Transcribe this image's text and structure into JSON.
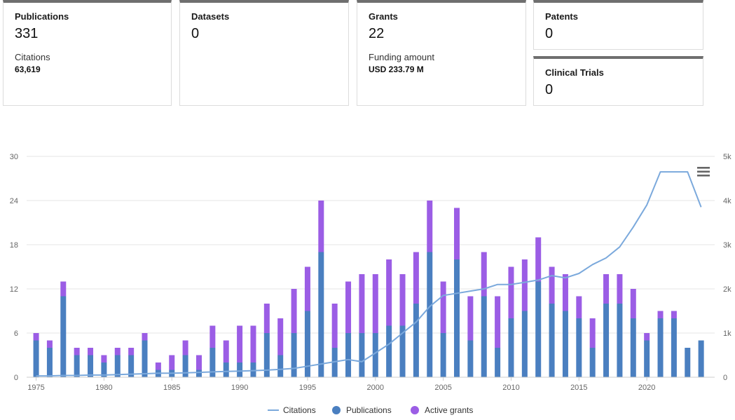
{
  "cards": {
    "publications": {
      "label": "Publications",
      "value": "331",
      "sub_label": "Citations",
      "sub_value": "63,619"
    },
    "datasets": {
      "label": "Datasets",
      "value": "0"
    },
    "grants": {
      "label": "Grants",
      "value": "22",
      "sub_label": "Funding amount",
      "sub_value": "USD 233.79 M"
    },
    "patents": {
      "label": "Patents",
      "value": "0"
    },
    "clinical_trials": {
      "label": "Clinical Trials",
      "value": "0"
    }
  },
  "menu_icon": "hamburger-menu-icon",
  "colors": {
    "publications": "#4a7fc0",
    "grants": "#9b5de5",
    "citations": "#7ba9dc",
    "grid": "#e6e6e6"
  },
  "chart_data": {
    "type": "bar",
    "stacked": true,
    "x": [
      1975,
      1976,
      1977,
      1978,
      1979,
      1980,
      1981,
      1982,
      1983,
      1984,
      1985,
      1986,
      1987,
      1988,
      1989,
      1990,
      1991,
      1992,
      1993,
      1994,
      1995,
      1996,
      1997,
      1998,
      1999,
      2000,
      2001,
      2002,
      2003,
      2004,
      2005,
      2006,
      2007,
      2008,
      2009,
      2010,
      2011,
      2012,
      2013,
      2014,
      2015,
      2016,
      2017,
      2018,
      2019,
      2020,
      2021,
      2022,
      2023,
      2024
    ],
    "xticks": [
      "1975",
      "1980",
      "1985",
      "1990",
      "1995",
      "2000",
      "2005",
      "2010",
      "2015",
      "2020"
    ],
    "xlim": [
      1974.3,
      2025
    ],
    "y_left": {
      "ticks": [
        "0",
        "6",
        "12",
        "18",
        "24",
        "30"
      ],
      "lim": [
        0,
        30
      ]
    },
    "y_right": {
      "ticks": [
        "0",
        "1k",
        "2k",
        "3k",
        "4k",
        "5k"
      ],
      "lim": [
        0,
        5000
      ]
    },
    "grid": true,
    "legend_position": "bottom-center",
    "series": [
      {
        "name": "Publications",
        "kind": "bar",
        "axis": "left",
        "values": [
          5,
          4,
          11,
          3,
          3,
          2,
          3,
          3,
          5,
          1,
          1,
          3,
          1,
          4,
          2,
          2,
          2,
          6,
          3,
          6,
          9,
          17,
          4,
          6,
          6,
          6,
          7,
          7,
          10,
          17,
          6,
          16,
          5,
          11,
          4,
          8,
          9,
          13,
          10,
          9,
          8,
          4,
          10,
          10,
          8,
          5,
          8,
          8,
          4,
          5
        ]
      },
      {
        "name": "Active grants",
        "kind": "bar",
        "axis": "left",
        "values": [
          1,
          1,
          2,
          1,
          1,
          1,
          1,
          1,
          1,
          1,
          2,
          2,
          2,
          3,
          3,
          5,
          5,
          4,
          5,
          6,
          6,
          7,
          6,
          7,
          8,
          8,
          9,
          7,
          7,
          7,
          7,
          7,
          6,
          6,
          7,
          7,
          7,
          6,
          5,
          5,
          3,
          4,
          4,
          4,
          4,
          1,
          1,
          1,
          0,
          0
        ]
      },
      {
        "name": "Citations",
        "kind": "line",
        "axis": "right",
        "values": [
          30,
          30,
          40,
          40,
          50,
          50,
          60,
          70,
          80,
          90,
          90,
          100,
          110,
          120,
          130,
          140,
          150,
          160,
          180,
          200,
          250,
          300,
          350,
          400,
          350,
          550,
          750,
          1000,
          1250,
          1600,
          1850,
          1900,
          1950,
          2000,
          2100,
          2100,
          2150,
          2200,
          2300,
          2250,
          2350,
          2550,
          2700,
          2950,
          3400,
          3900,
          4650,
          4650,
          4650,
          3850
        ]
      }
    ]
  }
}
